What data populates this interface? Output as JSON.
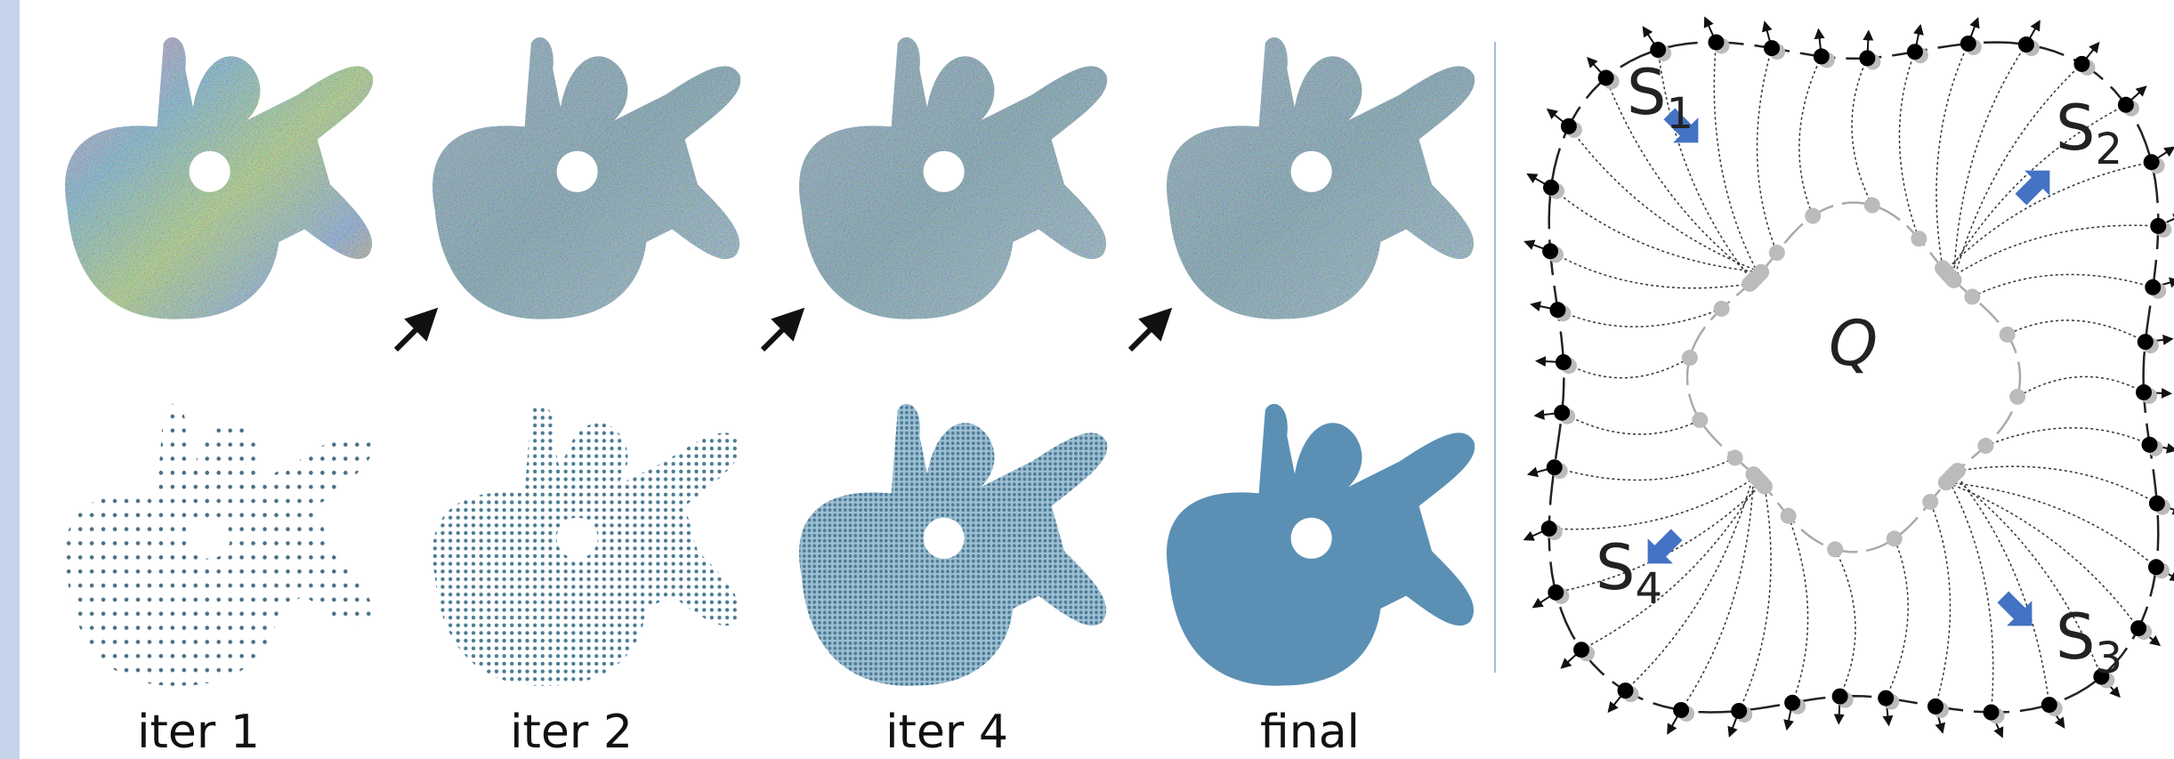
{
  "panels": [
    {
      "label": "iter 1"
    },
    {
      "label": "iter 2"
    },
    {
      "label": "iter 4"
    },
    {
      "label": "final"
    }
  ],
  "diagram": {
    "center_label": "Q",
    "sets": [
      {
        "name": "S",
        "index": "1"
      },
      {
        "name": "S",
        "index": "2"
      },
      {
        "name": "S",
        "index": "3"
      },
      {
        "name": "S",
        "index": "4"
      }
    ]
  }
}
